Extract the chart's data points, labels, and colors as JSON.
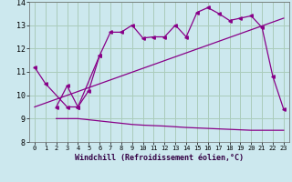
{
  "xlabel": "Windchill (Refroidissement éolien,°C)",
  "bg_color": "#cce8ee",
  "grid_color": "#aaccbb",
  "line_color": "#880088",
  "ylim": [
    8,
    14
  ],
  "xlim": [
    -0.5,
    23.5
  ],
  "yticks": [
    8,
    9,
    10,
    11,
    12,
    13,
    14
  ],
  "xticks": [
    0,
    1,
    2,
    3,
    4,
    5,
    6,
    7,
    8,
    9,
    10,
    11,
    12,
    13,
    14,
    15,
    16,
    17,
    18,
    19,
    20,
    21,
    22,
    23
  ],
  "series1_x": [
    0,
    1,
    3,
    4,
    6,
    7,
    8,
    9,
    10,
    11,
    12,
    13,
    14,
    15,
    16,
    17,
    18,
    19,
    20,
    21,
    22,
    23
  ],
  "series1_y": [
    11.2,
    10.5,
    9.5,
    9.5,
    11.7,
    12.7,
    12.7,
    13.0,
    12.45,
    12.5,
    12.5,
    13.0,
    12.5,
    13.55,
    13.75,
    13.5,
    13.2,
    13.3,
    13.4,
    12.9,
    10.8,
    9.4
  ],
  "series2_x": [
    2,
    3,
    4,
    5,
    6
  ],
  "series2_y": [
    9.5,
    10.4,
    9.5,
    10.2,
    11.7
  ],
  "series3_x": [
    0,
    23
  ],
  "series3_y": [
    9.5,
    13.3
  ],
  "series4_x": [
    2,
    3,
    4,
    5,
    6,
    7,
    8,
    9,
    10,
    11,
    12,
    13,
    14,
    15,
    16,
    17,
    18,
    19,
    20,
    21,
    22,
    23
  ],
  "series4_y": [
    9.0,
    9.0,
    9.0,
    8.95,
    8.9,
    8.85,
    8.8,
    8.75,
    8.72,
    8.7,
    8.68,
    8.65,
    8.62,
    8.6,
    8.58,
    8.56,
    8.54,
    8.52,
    8.5,
    8.5,
    8.5,
    8.5
  ]
}
